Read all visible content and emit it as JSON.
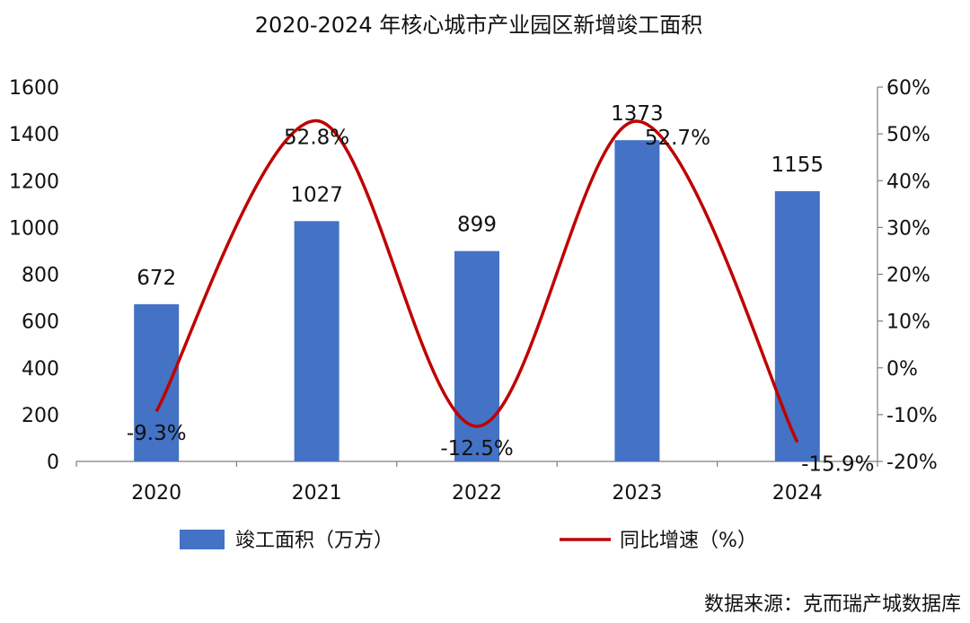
{
  "chart_data": {
    "type": "bar+line",
    "title": "2020-2024 年核心城市产业园区新增竣工面积",
    "categories": [
      "2020",
      "2021",
      "2022",
      "2023",
      "2024"
    ],
    "series": [
      {
        "name": "竣工面积（万方）",
        "type": "bar",
        "axis": "left",
        "color": "#4472C4",
        "values": [
          672,
          1027,
          899,
          1373,
          1155
        ],
        "labels": [
          "672",
          "1027",
          "899",
          "1373",
          "1155"
        ]
      },
      {
        "name": "同比增速（%）",
        "type": "line",
        "axis": "right",
        "color": "#C00000",
        "values": [
          -9.3,
          52.8,
          -12.5,
          52.7,
          -15.9
        ],
        "labels": [
          "-9.3%",
          "52.8%",
          "-12.5%",
          "52.7%",
          "-15.9%"
        ]
      }
    ],
    "left_axis": {
      "ylim": [
        0,
        1600
      ],
      "ticks": [
        0,
        200,
        400,
        600,
        800,
        1000,
        1200,
        1400,
        1600
      ],
      "tick_labels": [
        "0",
        "200",
        "400",
        "600",
        "800",
        "1000",
        "1200",
        "1400",
        "1600"
      ]
    },
    "right_axis": {
      "ylim": [
        -20,
        60
      ],
      "ticks": [
        -20,
        -10,
        0,
        10,
        20,
        30,
        40,
        50,
        60
      ],
      "tick_labels": [
        "-20%",
        "-10%",
        "0%",
        "10%",
        "20%",
        "30%",
        "40%",
        "50%",
        "60%"
      ]
    },
    "legend_position": "bottom",
    "grid": false
  },
  "source_note": "数据来源：克而瑞产城数据库"
}
